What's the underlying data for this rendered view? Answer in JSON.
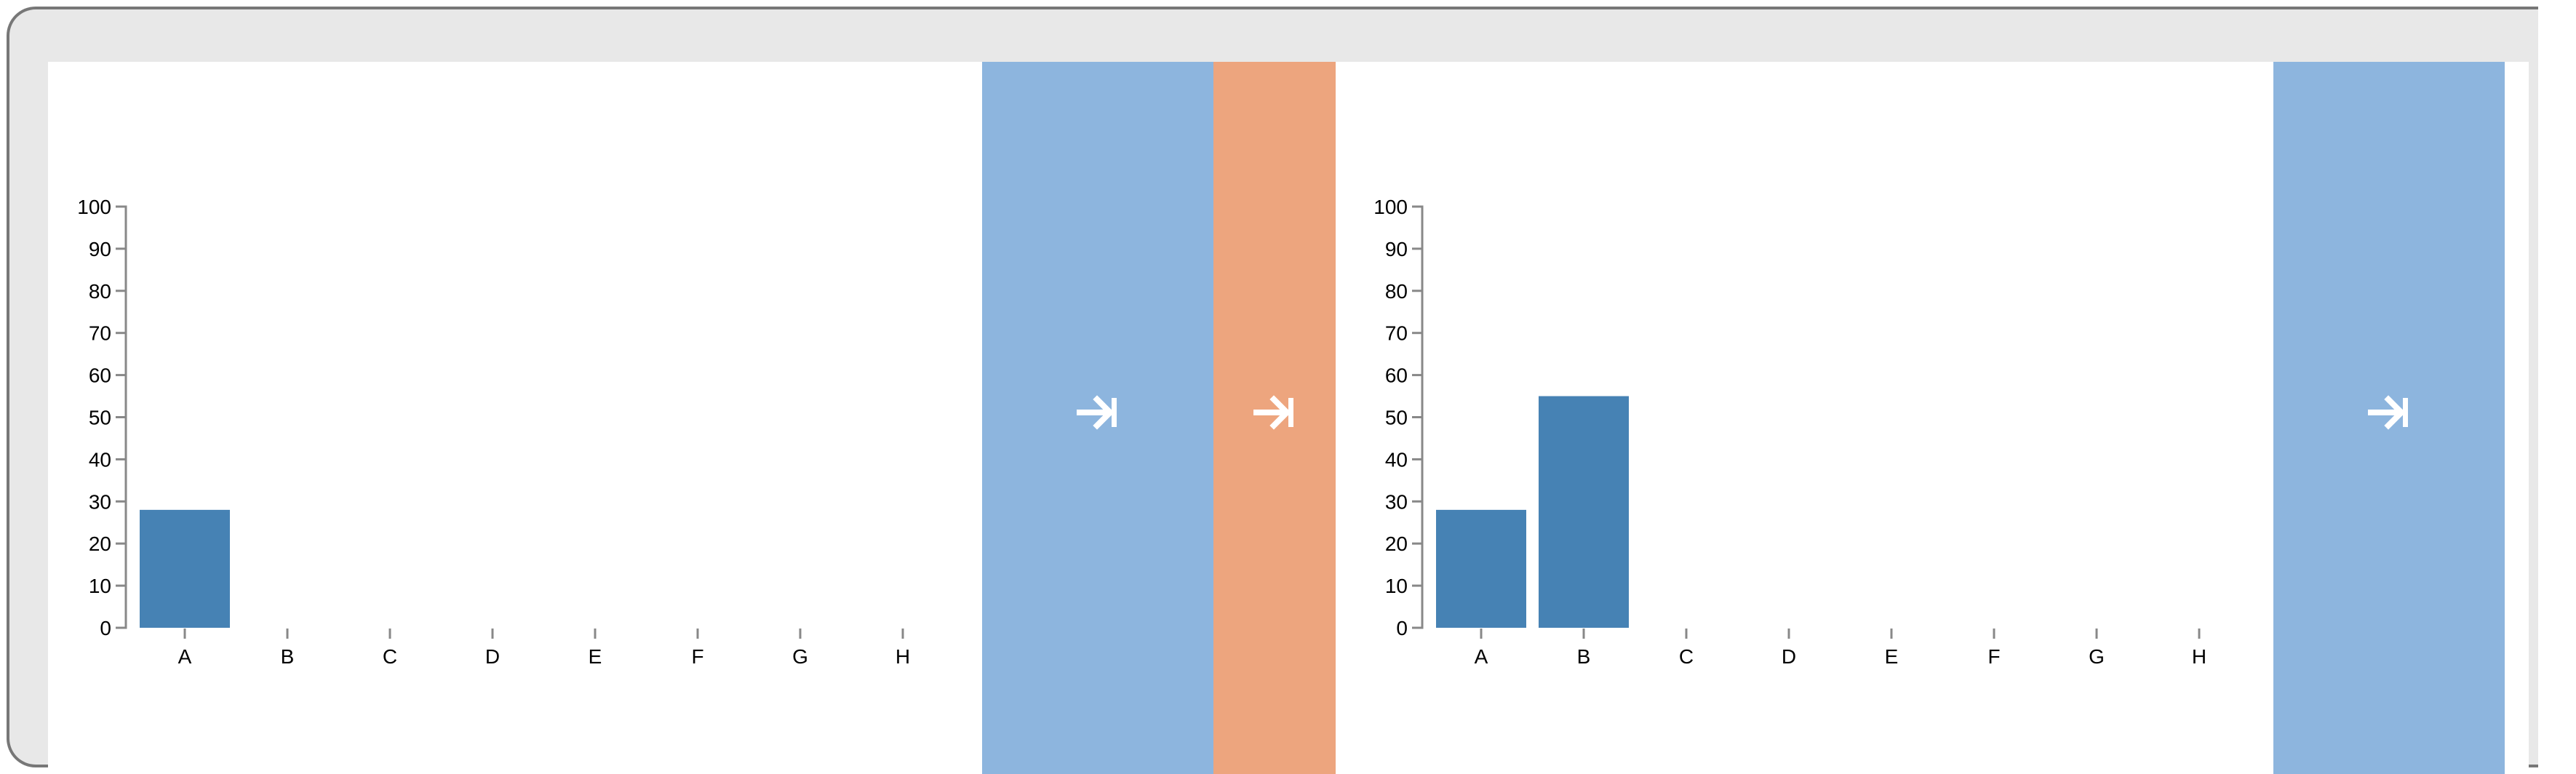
{
  "chart_data": [
    {
      "type": "bar",
      "categories": [
        "A",
        "B",
        "C",
        "D",
        "E",
        "F",
        "G",
        "H"
      ],
      "values": [
        28,
        null,
        null,
        null,
        null,
        null,
        null,
        null
      ],
      "ylim": [
        0,
        100
      ],
      "yticks": [
        "0",
        "10",
        "20",
        "30",
        "40",
        "50",
        "60",
        "70",
        "80",
        "90",
        "100"
      ],
      "grid": false,
      "color": "#4682b4"
    },
    {
      "type": "bar",
      "categories": [
        "A",
        "B",
        "C",
        "D",
        "E",
        "F",
        "G",
        "H"
      ],
      "values": [
        28,
        55,
        null,
        null,
        null,
        null,
        null,
        null
      ],
      "ylim": [
        0,
        100
      ],
      "yticks": [
        "0",
        "10",
        "20",
        "30",
        "40",
        "50",
        "60",
        "70",
        "80",
        "90",
        "100"
      ],
      "grid": false,
      "color": "#4682b4"
    }
  ],
  "controls": {
    "next_icon": "arrow-right-to-bar-icon",
    "colors": {
      "next_blue": "#8db5de",
      "next_orange": "#eda57e",
      "frame_border": "#777777",
      "frame_fill": "#e8e8e8"
    }
  }
}
